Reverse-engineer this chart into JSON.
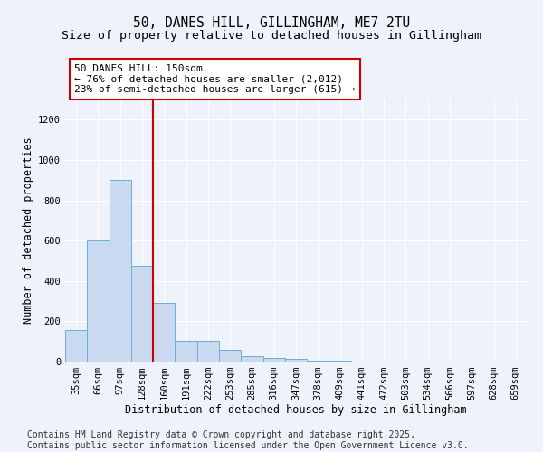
{
  "title_line1": "50, DANES HILL, GILLINGHAM, ME7 2TU",
  "title_line2": "Size of property relative to detached houses in Gillingham",
  "xlabel": "Distribution of detached houses by size in Gillingham",
  "ylabel": "Number of detached properties",
  "categories": [
    "35sqm",
    "66sqm",
    "97sqm",
    "128sqm",
    "160sqm",
    "191sqm",
    "222sqm",
    "253sqm",
    "285sqm",
    "316sqm",
    "347sqm",
    "378sqm",
    "409sqm",
    "441sqm",
    "472sqm",
    "503sqm",
    "534sqm",
    "566sqm",
    "597sqm",
    "628sqm",
    "659sqm"
  ],
  "values": [
    155,
    600,
    900,
    475,
    290,
    105,
    105,
    60,
    25,
    20,
    15,
    5,
    5,
    0,
    0,
    0,
    0,
    0,
    0,
    0,
    0
  ],
  "bar_color": "#c9d9ef",
  "bar_edge_color": "#6aaed6",
  "vline_x": 3.5,
  "vline_color": "#cc0000",
  "annotation_text": "50 DANES HILL: 150sqm\n← 76% of detached houses are smaller (2,012)\n23% of semi-detached houses are larger (615) →",
  "annotation_box_color": "#ffffff",
  "annotation_box_edge_color": "#cc0000",
  "ylim": [
    0,
    1300
  ],
  "yticks": [
    0,
    200,
    400,
    600,
    800,
    1000,
    1200
  ],
  "background_color": "#eef2fa",
  "grid_color": "#ffffff",
  "footer_line1": "Contains HM Land Registry data © Crown copyright and database right 2025.",
  "footer_line2": "Contains public sector information licensed under the Open Government Licence v3.0.",
  "title_fontsize": 10.5,
  "subtitle_fontsize": 9.5,
  "axis_label_fontsize": 8.5,
  "tick_fontsize": 7.5,
  "annotation_fontsize": 8,
  "footer_fontsize": 7
}
